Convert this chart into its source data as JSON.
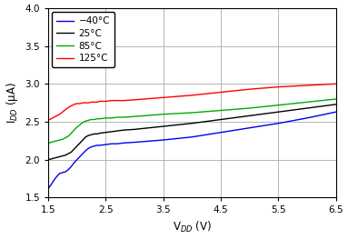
{
  "xlabel": "V$_{DD}$ (V)",
  "ylabel": "I$_{DD}$ (μA)",
  "xlim": [
    1.5,
    6.5
  ],
  "ylim": [
    1.5,
    4.0
  ],
  "xticks": [
    1.5,
    2.5,
    3.5,
    4.5,
    5.5,
    6.5
  ],
  "yticks": [
    1.5,
    2.0,
    2.5,
    3.0,
    3.5,
    4.0
  ],
  "grid_color": "#aaaaaa",
  "legend_labels": [
    "−40°C",
    "25°C",
    "85°C",
    "125°C"
  ],
  "line_colors": [
    "#0000ee",
    "#000000",
    "#00aa00",
    "#ff0000"
  ],
  "curves": {
    "m40": {
      "x": [
        1.5,
        1.55,
        1.6,
        1.65,
        1.7,
        1.75,
        1.8,
        1.85,
        1.9,
        1.95,
        2.0,
        2.05,
        2.1,
        2.15,
        2.2,
        2.25,
        2.3,
        2.35,
        2.4,
        2.5,
        2.6,
        2.7,
        2.8,
        3.0,
        3.5,
        4.0,
        4.5,
        5.0,
        5.5,
        6.0,
        6.5
      ],
      "y": [
        1.62,
        1.67,
        1.73,
        1.78,
        1.82,
        1.83,
        1.84,
        1.87,
        1.91,
        1.96,
        2.0,
        2.04,
        2.08,
        2.12,
        2.15,
        2.17,
        2.18,
        2.19,
        2.19,
        2.2,
        2.21,
        2.21,
        2.22,
        2.23,
        2.26,
        2.3,
        2.36,
        2.42,
        2.48,
        2.55,
        2.63
      ]
    },
    "p25": {
      "x": [
        1.5,
        1.55,
        1.6,
        1.65,
        1.7,
        1.75,
        1.8,
        1.85,
        1.9,
        1.95,
        2.0,
        2.05,
        2.1,
        2.15,
        2.2,
        2.25,
        2.3,
        2.35,
        2.4,
        2.5,
        2.6,
        2.7,
        2.8,
        3.0,
        3.5,
        4.0,
        4.5,
        5.0,
        5.5,
        6.0,
        6.5
      ],
      "y": [
        2.0,
        2.01,
        2.02,
        2.03,
        2.04,
        2.05,
        2.06,
        2.08,
        2.1,
        2.14,
        2.18,
        2.22,
        2.26,
        2.3,
        2.32,
        2.33,
        2.34,
        2.34,
        2.35,
        2.36,
        2.37,
        2.38,
        2.39,
        2.4,
        2.44,
        2.48,
        2.53,
        2.58,
        2.63,
        2.68,
        2.73
      ]
    },
    "p85": {
      "x": [
        1.5,
        1.55,
        1.6,
        1.65,
        1.7,
        1.75,
        1.8,
        1.85,
        1.9,
        1.95,
        2.0,
        2.05,
        2.1,
        2.15,
        2.2,
        2.25,
        2.3,
        2.35,
        2.4,
        2.5,
        2.6,
        2.7,
        2.8,
        3.0,
        3.5,
        4.0,
        4.5,
        5.0,
        5.5,
        6.0,
        6.5
      ],
      "y": [
        2.22,
        2.23,
        2.24,
        2.25,
        2.26,
        2.27,
        2.29,
        2.31,
        2.35,
        2.39,
        2.43,
        2.46,
        2.49,
        2.51,
        2.52,
        2.53,
        2.53,
        2.54,
        2.54,
        2.55,
        2.55,
        2.56,
        2.56,
        2.57,
        2.6,
        2.62,
        2.65,
        2.68,
        2.72,
        2.76,
        2.8
      ]
    },
    "p125": {
      "x": [
        1.5,
        1.55,
        1.6,
        1.65,
        1.7,
        1.75,
        1.8,
        1.85,
        1.9,
        1.95,
        2.0,
        2.05,
        2.1,
        2.15,
        2.2,
        2.25,
        2.3,
        2.35,
        2.4,
        2.5,
        2.6,
        2.7,
        2.8,
        3.0,
        3.5,
        4.0,
        4.5,
        5.0,
        5.5,
        6.0,
        6.5
      ],
      "y": [
        2.52,
        2.54,
        2.56,
        2.58,
        2.6,
        2.63,
        2.66,
        2.69,
        2.71,
        2.73,
        2.74,
        2.74,
        2.75,
        2.75,
        2.75,
        2.76,
        2.76,
        2.76,
        2.77,
        2.77,
        2.78,
        2.78,
        2.78,
        2.79,
        2.82,
        2.85,
        2.89,
        2.93,
        2.96,
        2.98,
        3.0
      ]
    }
  }
}
